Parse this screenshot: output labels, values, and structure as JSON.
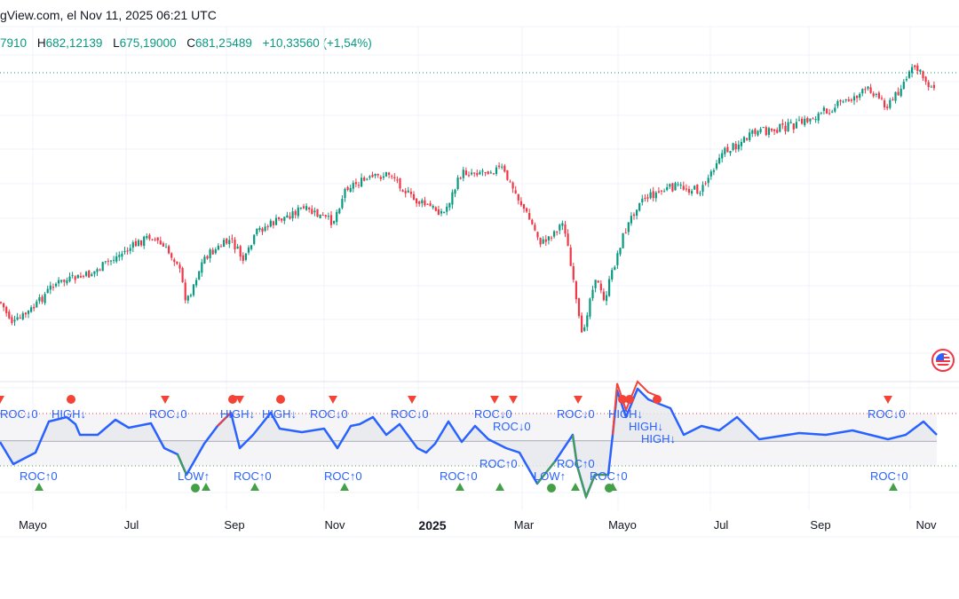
{
  "header": {
    "source_text": "gView.com, el Nov 11, 2025 06:21 UTC"
  },
  "ohlc": {
    "open_partial": "7910",
    "high_label": "H",
    "high": "682,12139",
    "low_label": "L",
    "low": "675,19000",
    "close_label": "C",
    "close": "681,25489",
    "change": "+10,33560 (+1,54%)"
  },
  "colors": {
    "up": "#089981",
    "down": "#f23645",
    "oscillator": "#2962ff",
    "signal_up": "#43a047",
    "signal_down": "#f44336"
  },
  "indicator": {
    "label_roc_down": "ROC↓0",
    "label_roc_up": "ROC↑0",
    "label_high": "HIGH↓",
    "label_low": "LOW↑"
  },
  "x_axis": {
    "labels": [
      {
        "text": "Mayo",
        "bold": false
      },
      {
        "text": "Jul",
        "bold": false
      },
      {
        "text": "Sep",
        "bold": false
      },
      {
        "text": "Nov",
        "bold": false
      },
      {
        "text": "2025",
        "bold": true
      },
      {
        "text": "Mar",
        "bold": false
      },
      {
        "text": "Mayo",
        "bold": false
      },
      {
        "text": "Jul",
        "bold": false
      },
      {
        "text": "Sep",
        "bold": false
      },
      {
        "text": "Nov",
        "bold": false
      }
    ]
  },
  "icons": {
    "flag": "us-flag-icon"
  }
}
